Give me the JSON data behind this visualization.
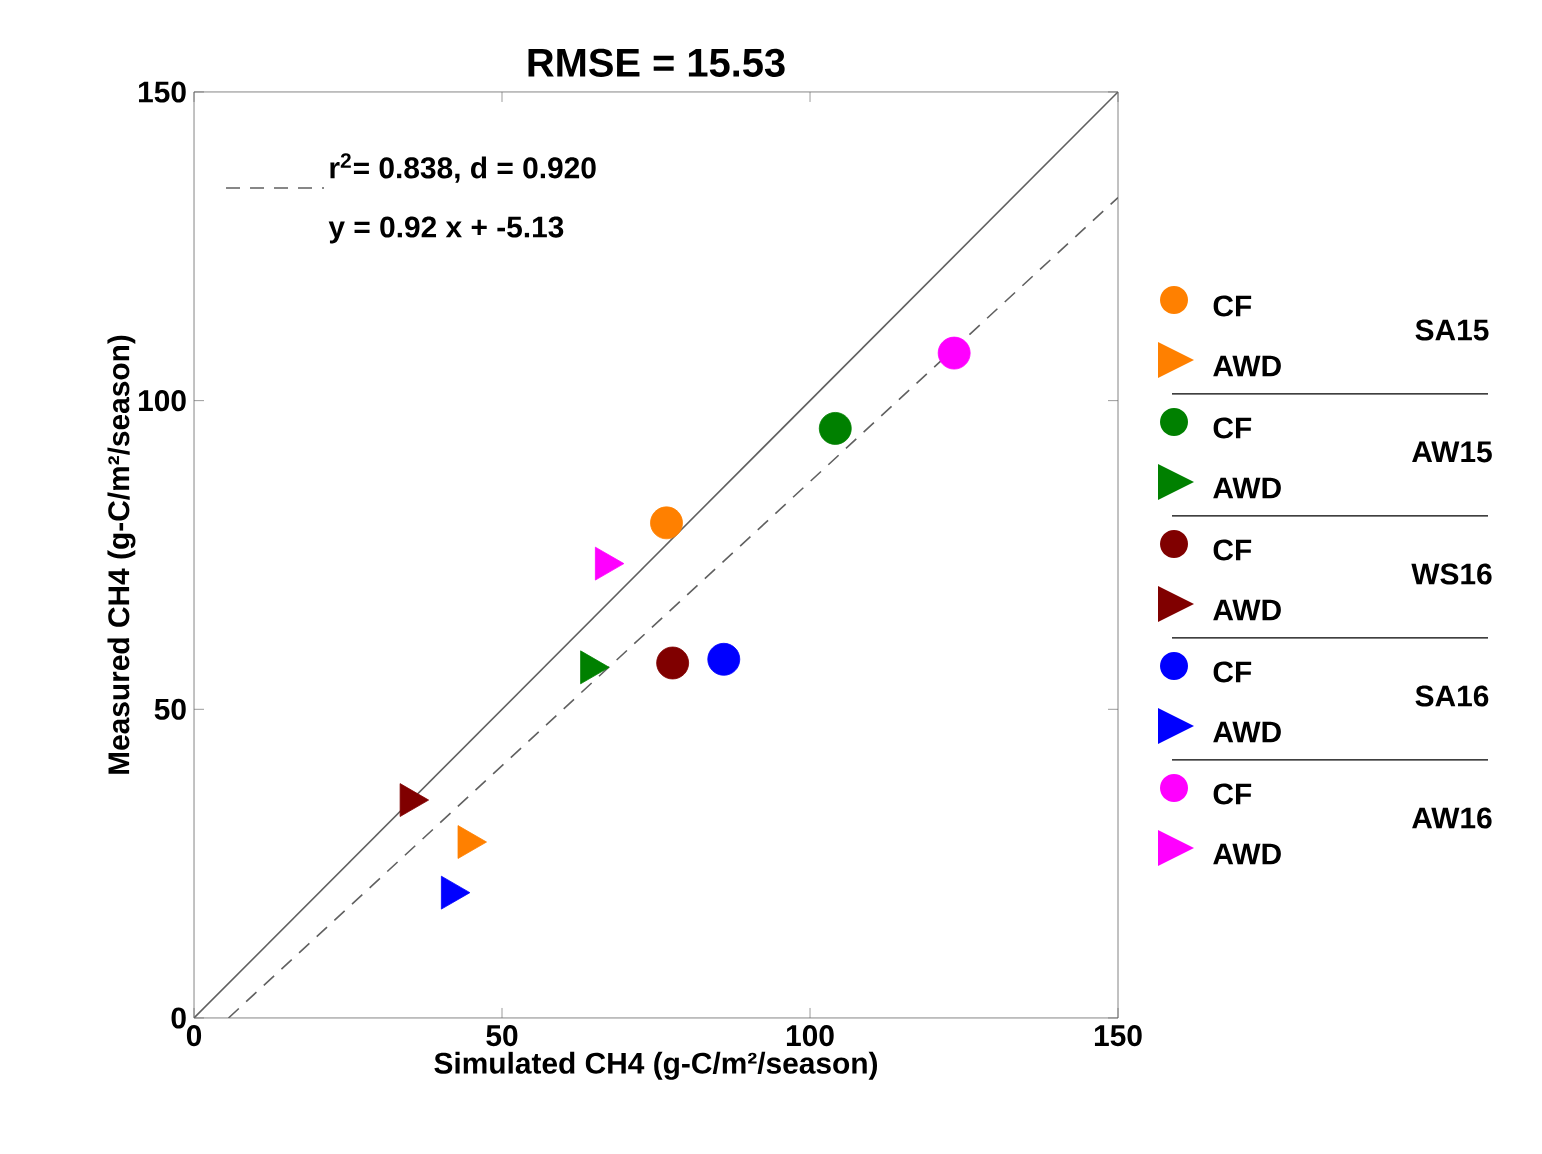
{
  "chart_data": {
    "type": "scatter",
    "title": "RMSE = 15.53",
    "xlabel": "Simulated CH4 (g-C/m²/season)",
    "ylabel": "Measured CH4 (g-C/m²/season)",
    "xlim": [
      0,
      150
    ],
    "ylim": [
      0,
      150
    ],
    "xticks": [
      0,
      50,
      100,
      150
    ],
    "yticks": [
      0,
      50,
      100,
      150
    ],
    "legend": "right",
    "annotations": [
      "y = 0.92 x + -5.13",
      "SA15",
      "AW15",
      "WS16",
      "SA16",
      "AW16"
    ],
    "series": [
      {
        "type": "line",
        "color": "#606060",
        "line_style": "solid",
        "x": [
          0,
          150
        ],
        "values": [
          0,
          150
        ]
      },
      {
        "type": "line",
        "name": "r$^{2}$= 0.838, d = 0.920",
        "color": "#606060",
        "line_style": "dashed",
        "x": [
          5.6,
          150
        ],
        "values": [
          0,
          132.9
        ]
      },
      {
        "name": "CF",
        "marker": "circle",
        "color": "#ff8000",
        "x": [
          76.7
        ],
        "values": [
          80.2
        ]
      },
      {
        "name": "AWD",
        "marker": "triangle",
        "color": "#ff8000",
        "x": [
          44.4
        ],
        "values": [
          28.5
        ]
      },
      {
        "name": "CF",
        "marker": "circle",
        "color": "#008000",
        "x": [
          104.1
        ],
        "values": [
          95.5
        ]
      },
      {
        "name": "AWD",
        "marker": "triangle",
        "color": "#008000",
        "x": [
          64.3
        ],
        "values": [
          56.8
        ]
      },
      {
        "name": "CF",
        "marker": "circle",
        "color": "#800000",
        "x": [
          77.7
        ],
        "values": [
          57.5
        ]
      },
      {
        "name": "AWD",
        "marker": "triangle",
        "color": "#800000",
        "x": [
          35.0
        ],
        "values": [
          35.3
        ]
      },
      {
        "name": "CF",
        "marker": "circle",
        "color": "#0000ff",
        "x": [
          86.0
        ],
        "values": [
          58.1
        ]
      },
      {
        "name": "AWD",
        "marker": "triangle",
        "color": "#0000ff",
        "x": [
          41.7
        ],
        "values": [
          20.3
        ]
      },
      {
        "name": "CF",
        "marker": "circle",
        "color": "#ff00ff",
        "x": [
          123.4
        ],
        "values": [
          107.7
        ]
      },
      {
        "name": "AWD",
        "marker": "triangle",
        "color": "#ff00ff",
        "x": [
          66.7
        ],
        "values": [
          73.6
        ]
      }
    ]
  }
}
